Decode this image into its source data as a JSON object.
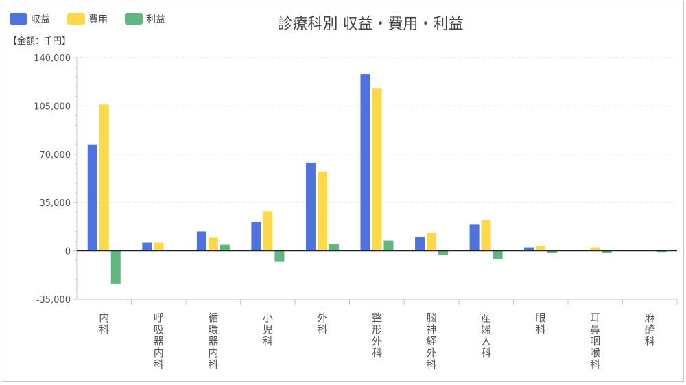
{
  "chart_data": {
    "type": "bar",
    "title": "診療科別 収益・費用・利益",
    "unit_label": "【金額：千円】",
    "categories": [
      "内科",
      "呼吸器内科",
      "循環器内科",
      "小児科",
      "外科",
      "整形外科",
      "脳神経外科",
      "産婦人科",
      "眼科",
      "耳鼻咽喉科",
      "麻酔科"
    ],
    "series": [
      {
        "name": "収益",
        "color": "#4e73df",
        "values": [
          77000,
          6000,
          14000,
          21000,
          64000,
          128000,
          10000,
          19000,
          2500,
          0,
          0
        ]
      },
      {
        "name": "費用",
        "color": "#fcd94a",
        "values": [
          106000,
          6000,
          9500,
          28500,
          57500,
          118000,
          13000,
          22500,
          3500,
          2500,
          0
        ]
      },
      {
        "name": "利益",
        "color": "#5fb77d",
        "values": [
          -24000,
          0,
          4500,
          -8000,
          5000,
          7500,
          -3000,
          -6000,
          -1500,
          -1500,
          -800
        ]
      }
    ],
    "ylim": [
      -35000,
      140000
    ],
    "yticks": [
      -35000,
      0,
      35000,
      70000,
      105000,
      140000
    ],
    "ytick_labels": [
      "-35,000",
      "0",
      "35,000",
      "70,000",
      "105,000",
      "140,000"
    ],
    "grid": true,
    "legend_position": "top-left"
  }
}
